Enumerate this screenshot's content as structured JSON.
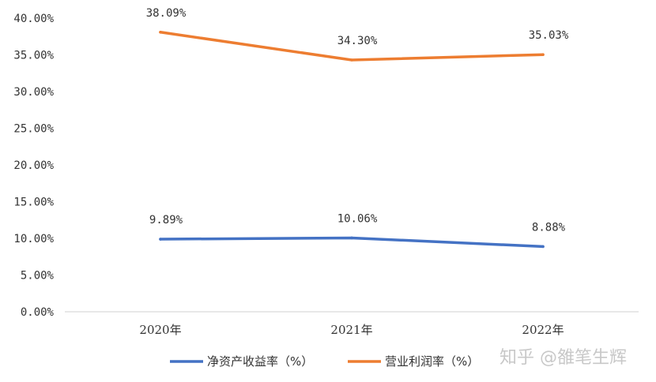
{
  "chart_data": {
    "type": "line",
    "categories": [
      "2020年",
      "2021年",
      "2022年"
    ],
    "ylim": [
      0,
      40
    ],
    "yticks": [
      0,
      5,
      10,
      15,
      20,
      25,
      30,
      35,
      40
    ],
    "ytick_labels": [
      "0.00%",
      "5.00%",
      "10.00%",
      "15.00%",
      "20.00%",
      "25.00%",
      "30.00%",
      "35.00%",
      "40.00%"
    ],
    "grid": false,
    "legend_position": "bottom",
    "series": [
      {
        "name": "净资产收益率（%）",
        "values": [
          9.89,
          10.06,
          8.88
        ],
        "labels": [
          "9.89%",
          "10.06%",
          "8.88%"
        ],
        "color": "#4472c4"
      },
      {
        "name": "营业利润率（%）",
        "values": [
          38.09,
          34.3,
          35.03
        ],
        "labels": [
          "38.09%",
          "34.30%",
          "35.03%"
        ],
        "color": "#ed7d31"
      }
    ]
  },
  "watermark": "知乎 @雒笔生辉"
}
